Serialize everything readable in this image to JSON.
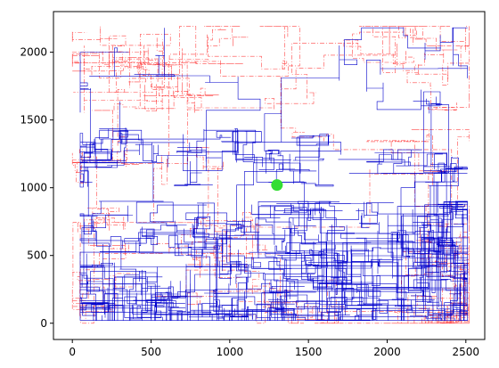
{
  "chart_data": {
    "type": "line",
    "title": "",
    "xlabel": "",
    "ylabel": "",
    "xlim": [
      -120,
      2620
    ],
    "ylim": [
      -120,
      2300
    ],
    "x_ticks": [
      0,
      500,
      1000,
      1500,
      2000,
      2500
    ],
    "y_ticks": [
      0,
      500,
      1000,
      1500,
      2000
    ],
    "x_tick_labels": [
      "0",
      "500",
      "1000",
      "1500",
      "2000",
      "2500"
    ],
    "y_tick_labels": [
      "0",
      "500",
      "1000",
      "1500",
      "2000"
    ],
    "grid": false,
    "legend": "none",
    "series": [
      {
        "color": "#0000cc",
        "style": "solid",
        "approx_x_extent": [
          50,
          2510
        ],
        "approx_y_extent": [
          20,
          2180
        ],
        "description_hidden": true
      },
      {
        "color": "#ff4444",
        "style": "dashdot",
        "approx_x_extent": [
          0,
          2520
        ],
        "approx_y_extent": [
          0,
          2190
        ],
        "description_hidden": true
      },
      {
        "type": "marker",
        "color": "#33dd33",
        "points": [
          [
            1300,
            1020
          ]
        ]
      }
    ],
    "vertical_blank_bands": [
      [
        1450,
        1545
      ],
      [
        1050,
        1100
      ],
      [
        900,
        1000
      ]
    ],
    "colors": {
      "axes": "#000000",
      "series_blue": "#0000cc",
      "series_red": "#ff4444",
      "marker": "#33dd33",
      "background": "#ffffff"
    }
  }
}
